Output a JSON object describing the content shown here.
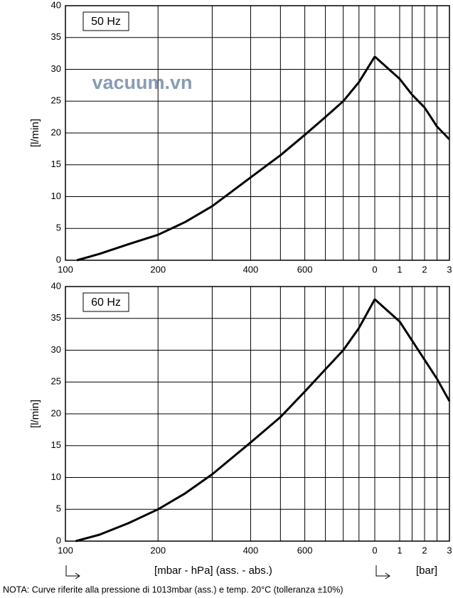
{
  "watermark": "vacuum.vn",
  "xlabel": "[mbar - hPa] (ass. - abs.)",
  "x2label": "[bar]",
  "note": "NOTA:  Curve riferite alla pressione di 1013mbar (ass.) e temp. 20°C (tolleranza ±10%)",
  "chart_data": [
    {
      "type": "line",
      "label": "50 Hz",
      "ylabel": "[l/min]",
      "color": "#000000",
      "ylim": [
        0,
        40
      ],
      "yticks": [
        0,
        5,
        10,
        15,
        20,
        25,
        30,
        35,
        40
      ],
      "grid": true,
      "xscale": "log",
      "xlim": [
        100,
        1013
      ],
      "xticks": [
        100,
        200,
        400,
        600
      ],
      "xminor": [
        300,
        500,
        700,
        800,
        900
      ],
      "x2lim": [
        0,
        3
      ],
      "x2ticks": [
        0,
        1,
        2,
        3
      ],
      "x2minor": [
        1.5,
        2.5
      ],
      "x": [
        109,
        129,
        160,
        200,
        245,
        300,
        400,
        500,
        600,
        700,
        800,
        900,
        1013
      ],
      "values": [
        0,
        1,
        2.5,
        4,
        6,
        8.5,
        13,
        16.5,
        19.7,
        22.5,
        25,
        28,
        32
      ],
      "x2": [
        0,
        1,
        1.5,
        2,
        2.5,
        3
      ],
      "values2": [
        32,
        28.5,
        26,
        24,
        21,
        19
      ]
    },
    {
      "type": "line",
      "label": "60 Hz",
      "ylabel": "[l/min]",
      "color": "#000000",
      "ylim": [
        0,
        40
      ],
      "yticks": [
        0,
        5,
        10,
        15,
        20,
        25,
        30,
        35,
        40
      ],
      "grid": true,
      "xscale": "log",
      "xlim": [
        100,
        1013
      ],
      "xticks": [
        100,
        200,
        400,
        600
      ],
      "xminor": [
        300,
        500,
        700,
        800,
        900
      ],
      "x2lim": [
        0,
        3
      ],
      "x2ticks": [
        0,
        1,
        2,
        3
      ],
      "x2minor": [
        1.5,
        2.5
      ],
      "x": [
        108,
        129,
        160,
        200,
        245,
        300,
        400,
        500,
        600,
        700,
        800,
        900,
        1013
      ],
      "values": [
        0,
        1,
        2.8,
        5,
        7.5,
        10.5,
        15.5,
        19.5,
        23.5,
        27,
        30,
        33.5,
        38
      ],
      "x2": [
        0,
        1,
        1.5,
        2,
        2.5,
        3
      ],
      "values2": [
        38,
        34.5,
        31.5,
        28.5,
        25.5,
        22
      ]
    }
  ]
}
